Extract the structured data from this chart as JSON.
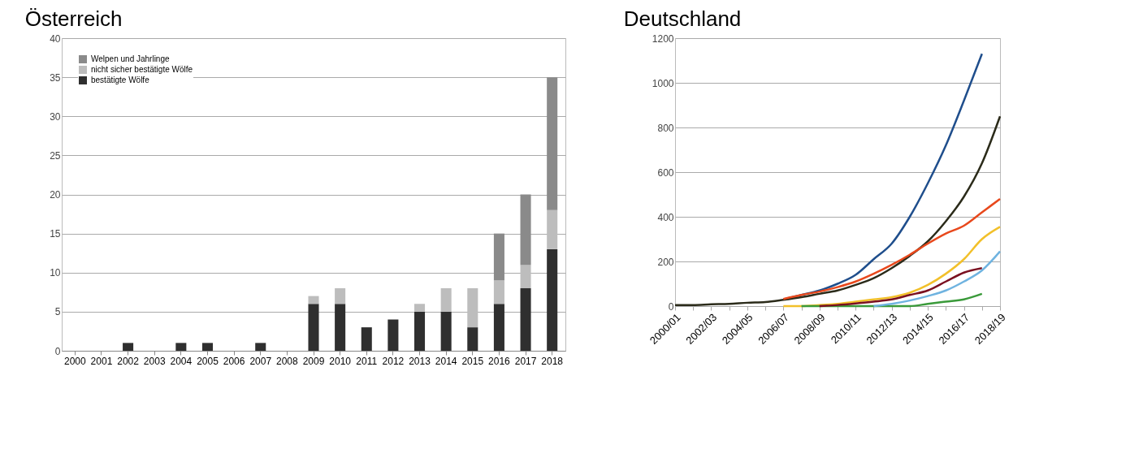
{
  "chart_data": [
    {
      "type": "bar",
      "title": "Österreich",
      "stacked": true,
      "legend": "top left",
      "grid": "y",
      "categories": [
        "2000",
        "2001",
        "2002",
        "2003",
        "2004",
        "2005",
        "2006",
        "2007",
        "2008",
        "2009",
        "2010",
        "2011",
        "2012",
        "2013",
        "2014",
        "2015",
        "2016",
        "2017",
        "2018"
      ],
      "ylim": [
        0,
        40
      ],
      "yticks": [
        0,
        5,
        10,
        15,
        20,
        25,
        30,
        35,
        40
      ],
      "series": [
        {
          "name": "bestätigte Wölfe",
          "color": "#2f2f2f",
          "values": [
            0,
            0,
            1,
            0,
            1,
            1,
            0,
            1,
            0,
            6,
            6,
            3,
            4,
            5,
            5,
            3,
            6,
            8,
            13
          ]
        },
        {
          "name": "nicht sicher bestätigte Wölfe",
          "color": "#bdbdbd",
          "values": [
            0,
            0,
            0,
            0,
            0,
            0,
            0,
            0,
            0,
            1,
            2,
            0,
            0,
            1,
            3,
            5,
            3,
            3,
            5
          ]
        },
        {
          "name": "Welpen und Jahrlinge",
          "color": "#8a8a8a",
          "values": [
            0,
            0,
            0,
            0,
            0,
            0,
            0,
            0,
            0,
            0,
            0,
            0,
            0,
            0,
            0,
            0,
            6,
            9,
            17
          ]
        }
      ]
    },
    {
      "type": "line",
      "title": "Deutschland",
      "grid": "y",
      "categories": [
        "2000/01",
        null,
        "2002/03",
        null,
        "2004/05",
        null,
        "2006/07",
        null,
        "2008/09",
        null,
        "2010/11",
        null,
        "2012/13",
        null,
        "2014/15",
        null,
        "2016/17",
        null,
        "2018/19"
      ],
      "ylim": [
        0,
        1200
      ],
      "yticks": [
        0,
        200,
        400,
        600,
        800,
        1000,
        1200
      ],
      "series": [
        {
          "color": "#1f4e8c",
          "values": [
            null,
            null,
            null,
            null,
            null,
            null,
            30,
            50,
            70,
            100,
            140,
            210,
            280,
            400,
            550,
            720,
            920,
            1130,
            null
          ]
        },
        {
          "color": "#2b2b1a",
          "values": [
            5,
            5,
            8,
            10,
            15,
            18,
            28,
            40,
            55,
            70,
            95,
            125,
            170,
            225,
            290,
            380,
            490,
            640,
            850
          ]
        },
        {
          "color": "#e8481c",
          "values": [
            null,
            null,
            null,
            null,
            null,
            null,
            32,
            50,
            65,
            85,
            110,
            145,
            185,
            230,
            280,
            325,
            360,
            420,
            480
          ]
        },
        {
          "color": "#f2c02a",
          "values": [
            null,
            null,
            null,
            null,
            null,
            null,
            0,
            0,
            5,
            10,
            20,
            30,
            40,
            60,
            95,
            145,
            210,
            300,
            355
          ]
        },
        {
          "color": "#3a9a3a",
          "values": [
            null,
            null,
            null,
            null,
            null,
            null,
            null,
            0,
            0,
            0,
            0,
            0,
            0,
            0,
            10,
            20,
            30,
            55,
            null
          ]
        },
        {
          "color": "#7a1020",
          "values": [
            null,
            null,
            null,
            null,
            null,
            null,
            null,
            null,
            0,
            5,
            12,
            20,
            30,
            50,
            70,
            110,
            150,
            170,
            null
          ]
        },
        {
          "color": "#6fb3e0",
          "values": [
            null,
            null,
            null,
            null,
            null,
            null,
            null,
            null,
            null,
            null,
            null,
            0,
            10,
            25,
            45,
            70,
            110,
            160,
            245
          ]
        }
      ]
    }
  ]
}
